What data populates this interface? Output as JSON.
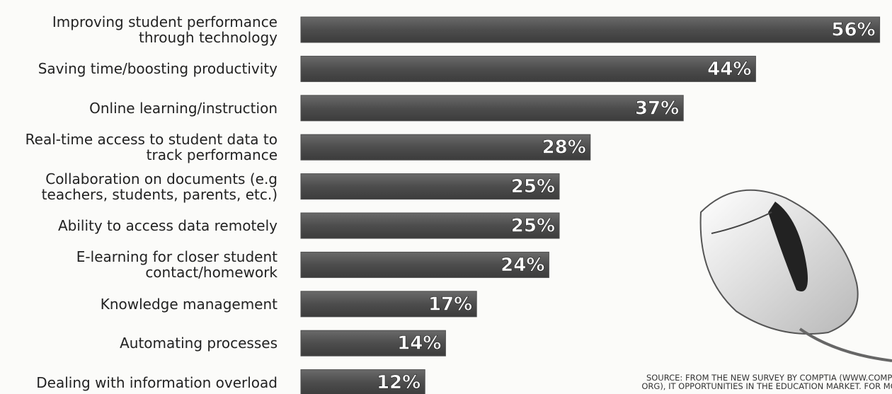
{
  "chart_data": {
    "type": "bar",
    "orientation": "horizontal",
    "categories": [
      "Improving student performance\nthrough technology",
      "Saving time/boosting productivity",
      "Online learning/instruction",
      "Real-time access to student data to\ntrack performance",
      "Collaboration on documents (e.g\nteachers, students, parents, etc.)",
      "Ability to access data remotely",
      "E-learning for closer student\ncontact/homework",
      "Knowledge management",
      "Automating processes",
      "Dealing with information overload"
    ],
    "values": [
      56,
      44,
      37,
      28,
      25,
      25,
      24,
      17,
      14,
      12
    ],
    "value_labels": [
      "56%",
      "44%",
      "37%",
      "28%",
      "25%",
      "25%",
      "24%",
      "17%",
      "14%",
      "12%"
    ],
    "color": "#4d4d4d",
    "source": "SOURCE: FROM THE NEW SURVEY BY COMPTIA (WWW.COMPTIA.\nORG), IT OPPORTUNITIES IN THE EDUCATION MARKET. FOR MORE"
  }
}
